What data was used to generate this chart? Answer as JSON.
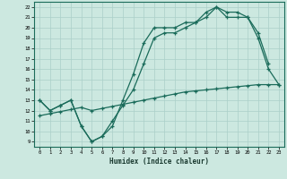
{
  "xlabel": "Humidex (Indice chaleur)",
  "bg_color": "#cce8e0",
  "line_color": "#1a6b5a",
  "grid_color": "#aacfc8",
  "xlim": [
    -0.5,
    23.5
  ],
  "ylim": [
    8.5,
    22.5
  ],
  "line1_x": [
    0,
    1,
    2,
    3,
    4,
    5,
    6,
    7,
    8,
    9,
    10,
    11,
    12,
    13,
    14,
    15,
    16,
    17,
    18,
    19,
    20,
    21,
    22,
    23
  ],
  "line1_y": [
    13,
    12,
    12.5,
    13,
    10.5,
    9,
    9.5,
    10.5,
    13,
    15.5,
    18.5,
    20,
    20,
    20,
    20.5,
    20.5,
    21.5,
    22,
    21,
    21,
    21,
    19,
    16,
    14.5
  ],
  "line2_x": [
    0,
    1,
    2,
    3,
    4,
    5,
    6,
    7,
    8,
    9,
    10,
    11,
    12,
    13,
    14,
    15,
    16,
    17,
    18,
    19,
    20,
    21,
    22
  ],
  "line2_y": [
    13,
    12,
    12.5,
    13,
    10.5,
    9,
    9.5,
    11,
    12.5,
    14,
    16.5,
    19,
    19.5,
    19.5,
    20,
    20.5,
    21,
    22,
    21.5,
    21.5,
    21,
    19.5,
    16.5
  ],
  "line3_x": [
    0,
    1,
    2,
    3,
    4,
    5,
    6,
    7,
    8,
    9,
    10,
    11,
    12,
    13,
    14,
    15,
    16,
    17,
    18,
    19,
    20,
    21,
    22,
    23
  ],
  "line3_y": [
    11.5,
    11.7,
    11.9,
    12.1,
    12.3,
    12.0,
    12.2,
    12.4,
    12.6,
    12.8,
    13.0,
    13.2,
    13.4,
    13.6,
    13.8,
    13.9,
    14.0,
    14.1,
    14.2,
    14.3,
    14.4,
    14.5,
    14.5,
    14.5
  ]
}
